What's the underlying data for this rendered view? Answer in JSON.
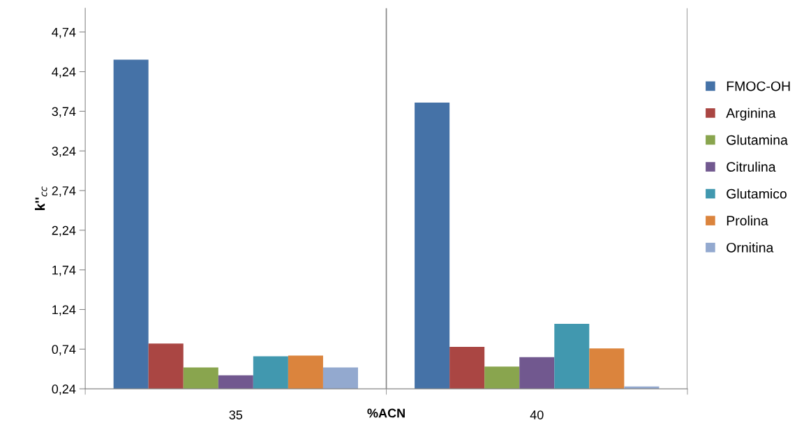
{
  "chart_data": {
    "type": "bar",
    "xlabel": "%ACN",
    "ylabel": "k''$_{cc}$",
    "categories": [
      "35",
      "40"
    ],
    "series": [
      {
        "name": "FMOC-OH",
        "color": "#4572a7",
        "values": [
          4.39,
          3.85
        ]
      },
      {
        "name": "Arginina",
        "color": "#aa4643",
        "values": [
          0.81,
          0.77
        ]
      },
      {
        "name": "Glutamina",
        "color": "#89a54e",
        "values": [
          0.51,
          0.52
        ]
      },
      {
        "name": "Citrulina",
        "color": "#71588f",
        "values": [
          0.41,
          0.64
        ]
      },
      {
        "name": "Glutamico",
        "color": "#4198af",
        "values": [
          0.65,
          1.06
        ]
      },
      {
        "name": "Prolina",
        "color": "#db843d",
        "values": [
          0.66,
          0.75
        ]
      },
      {
        "name": "Ornitina",
        "color": "#93a9cf",
        "values": [
          0.51,
          0.27
        ]
      }
    ],
    "ylim": [
      0.24,
      5.04
    ],
    "yticks": [
      {
        "value": 0.24,
        "label": "0,24"
      },
      {
        "value": 0.74,
        "label": "0,74"
      },
      {
        "value": 1.24,
        "label": "1,24"
      },
      {
        "value": 1.74,
        "label": "1,74"
      },
      {
        "value": 2.24,
        "label": "2,24"
      },
      {
        "value": 2.74,
        "label": "2,74"
      },
      {
        "value": 3.24,
        "label": "3,24"
      },
      {
        "value": 3.74,
        "label": "3,74"
      },
      {
        "value": 4.24,
        "label": "4,24"
      },
      {
        "value": 4.74,
        "label": "4,74"
      }
    ],
    "grid": "x",
    "legend": "right"
  }
}
